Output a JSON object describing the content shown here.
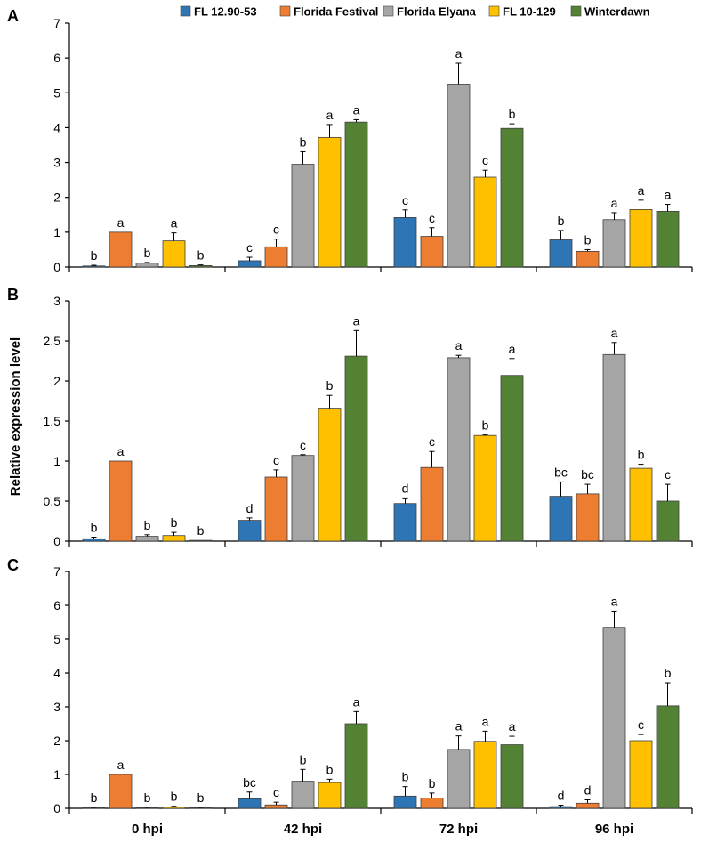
{
  "y_axis_label": "Relative expression level",
  "colors": {
    "FL 12.90-53": "#2e75b6",
    "Florida Festival": "#ed7d31",
    "Florida Elyana": "#a5a5a5",
    "FL 10-129": "#ffc000",
    "Winterdawn": "#548235"
  },
  "legend": {
    "placement": "top-right",
    "items": [
      "FL 12.90-53",
      "Florida Festival",
      "Florida Elyana",
      "FL 10-129",
      "Winterdawn"
    ]
  },
  "chart_data": [
    {
      "type": "bar",
      "panel": "A",
      "categories": [
        "0 hpi",
        "42 hpi",
        "72 hpi",
        "96 hpi"
      ],
      "ylim": [
        0,
        7
      ],
      "yticks": [
        "0",
        "1",
        "2",
        "3",
        "4",
        "5",
        "6",
        "7"
      ],
      "grid": false,
      "series": [
        {
          "name": "FL 12.90-53",
          "values": [
            0.03,
            0.18,
            1.42,
            0.78
          ],
          "errors": [
            0.02,
            0.1,
            0.22,
            0.27
          ],
          "labels": [
            "b",
            "c",
            "c",
            "b"
          ]
        },
        {
          "name": "Florida Festival",
          "values": [
            1.0,
            0.58,
            0.88,
            0.45
          ],
          "errors": [
            0.0,
            0.22,
            0.25,
            0.05
          ],
          "labels": [
            "a",
            "c",
            "c",
            "b"
          ]
        },
        {
          "name": "Florida Elyana",
          "values": [
            0.11,
            2.95,
            5.25,
            1.36
          ],
          "errors": [
            0.02,
            0.36,
            0.6,
            0.2
          ],
          "labels": [
            "b",
            "b",
            "a",
            "a"
          ]
        },
        {
          "name": "FL 10-129",
          "values": [
            0.75,
            3.72,
            2.58,
            1.65
          ],
          "errors": [
            0.23,
            0.37,
            0.2,
            0.27
          ],
          "labels": [
            "a",
            "a",
            "c",
            "a"
          ]
        },
        {
          "name": "Winterdawn",
          "values": [
            0.04,
            4.16,
            3.98,
            1.6
          ],
          "errors": [
            0.02,
            0.07,
            0.13,
            0.2
          ],
          "labels": [
            "b",
            "a",
            "b",
            "a"
          ]
        }
      ]
    },
    {
      "type": "bar",
      "panel": "B",
      "categories": [
        "0 hpi",
        "42 hpi",
        "72 hpi",
        "96 hpi"
      ],
      "ylim": [
        0,
        3
      ],
      "yticks": [
        "0",
        "0.5",
        "1",
        "1.5",
        "2",
        "2.5",
        "3"
      ],
      "grid": false,
      "series": [
        {
          "name": "FL 12.90-53",
          "values": [
            0.03,
            0.26,
            0.47,
            0.56
          ],
          "errors": [
            0.02,
            0.03,
            0.07,
            0.18
          ],
          "labels": [
            "b",
            "d",
            "d",
            "bc"
          ]
        },
        {
          "name": "Florida Festival",
          "values": [
            1.0,
            0.8,
            0.92,
            0.59
          ],
          "errors": [
            0.0,
            0.09,
            0.2,
            0.12
          ],
          "labels": [
            "a",
            "c",
            "c",
            "bc"
          ]
        },
        {
          "name": "Florida Elyana",
          "values": [
            0.06,
            1.07,
            2.29,
            2.33
          ],
          "errors": [
            0.02,
            0.01,
            0.03,
            0.15
          ],
          "labels": [
            "b",
            "c",
            "a",
            "a"
          ]
        },
        {
          "name": "FL 10-129",
          "values": [
            0.07,
            1.66,
            1.32,
            0.91
          ],
          "errors": [
            0.04,
            0.16,
            0.01,
            0.05
          ],
          "labels": [
            "b",
            "b",
            "b",
            "b"
          ]
        },
        {
          "name": "Winterdawn",
          "values": [
            0.01,
            2.31,
            2.07,
            0.5
          ],
          "errors": [
            0.0,
            0.32,
            0.21,
            0.21
          ],
          "labels": [
            "b",
            "a",
            "a",
            "c"
          ]
        }
      ]
    },
    {
      "type": "bar",
      "panel": "C",
      "categories": [
        "0 hpi",
        "42 hpi",
        "72 hpi",
        "96 hpi"
      ],
      "ylim": [
        0,
        7
      ],
      "yticks": [
        "0",
        "1",
        "2",
        "3",
        "4",
        "5",
        "6",
        "7"
      ],
      "grid": false,
      "series": [
        {
          "name": "FL 12.90-53",
          "values": [
            0.02,
            0.28,
            0.36,
            0.05
          ],
          "errors": [
            0.01,
            0.2,
            0.28,
            0.04
          ],
          "labels": [
            "b",
            "bc",
            "b",
            "d"
          ]
        },
        {
          "name": "Florida Festival",
          "values": [
            1.0,
            0.1,
            0.3,
            0.15
          ],
          "errors": [
            0.0,
            0.08,
            0.15,
            0.1
          ],
          "labels": [
            "a",
            "c",
            "b",
            "d"
          ]
        },
        {
          "name": "Florida Elyana",
          "values": [
            0.02,
            0.8,
            1.74,
            5.35
          ],
          "errors": [
            0.01,
            0.35,
            0.4,
            0.48
          ],
          "labels": [
            "b",
            "b",
            "a",
            "a"
          ]
        },
        {
          "name": "FL 10-129",
          "values": [
            0.04,
            0.76,
            1.98,
            2.0
          ],
          "errors": [
            0.02,
            0.1,
            0.3,
            0.18
          ],
          "labels": [
            "b",
            "b",
            "a",
            "c"
          ]
        },
        {
          "name": "Winterdawn",
          "values": [
            0.02,
            2.5,
            1.88,
            3.03
          ],
          "errors": [
            0.01,
            0.36,
            0.25,
            0.68
          ],
          "labels": [
            "b",
            "a",
            "a",
            "b"
          ]
        }
      ]
    }
  ]
}
